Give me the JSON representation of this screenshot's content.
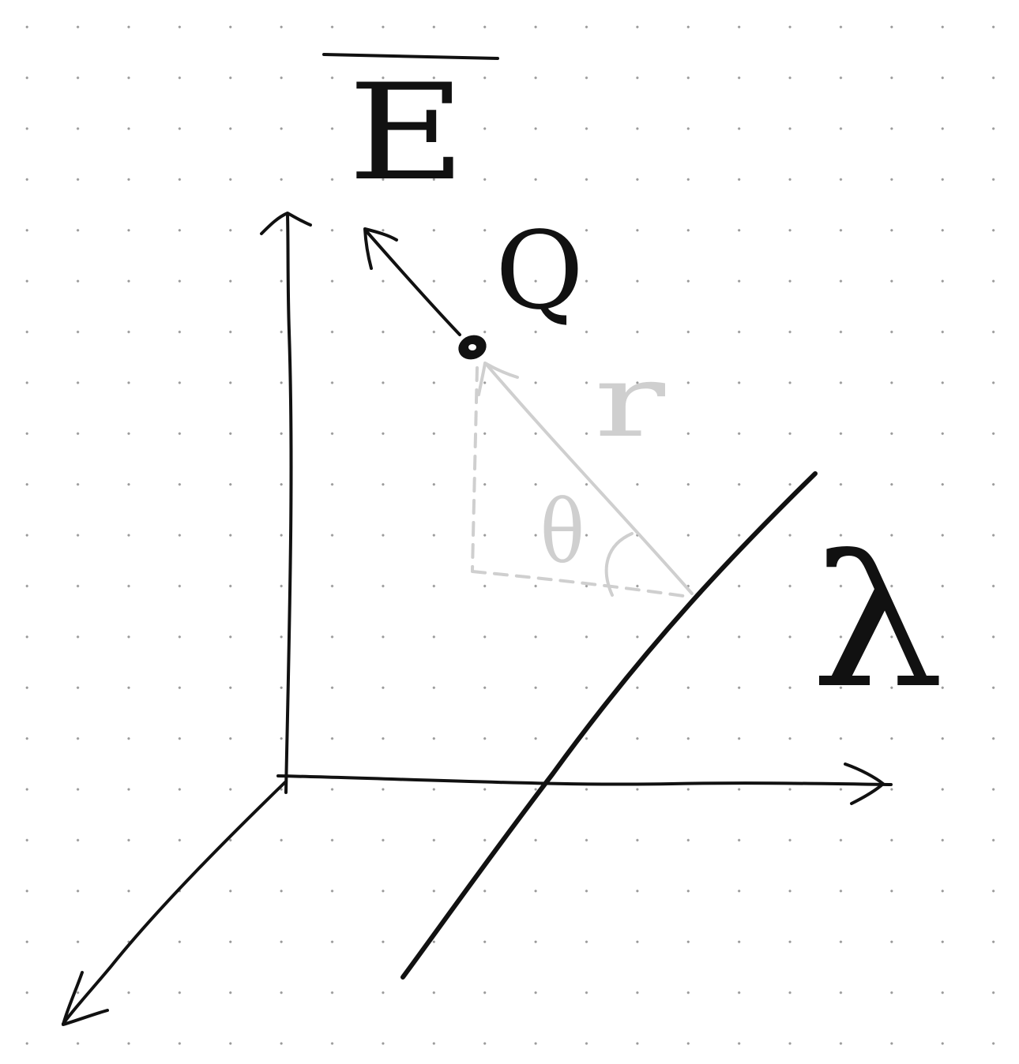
{
  "diagram": {
    "field_label": "E",
    "charge_label": "Q",
    "distance_label": "r",
    "angle_label": "θ",
    "line_charge_label": "λ",
    "colors": {
      "ink": "#111111",
      "construction": "#cfcfcf",
      "grid_dots": "#9a9a9a",
      "background": "#ffffff"
    }
  }
}
